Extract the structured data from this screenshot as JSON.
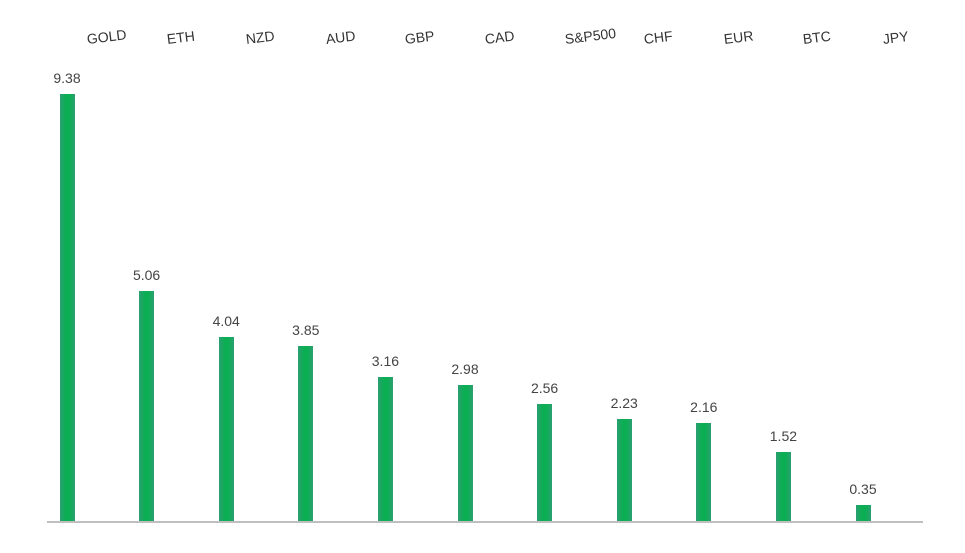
{
  "chart_data": {
    "type": "bar",
    "title": "",
    "categories": [
      "GOLD",
      "ETH",
      "NZD",
      "AUD",
      "GBP",
      "CAD",
      "S&P500",
      "CHF",
      "EUR",
      "BTC",
      "JPY"
    ],
    "values": [
      9.38,
      5.06,
      4.04,
      3.85,
      3.16,
      2.98,
      2.56,
      2.23,
      2.16,
      1.52,
      0.35
    ],
    "value_label_decimals": 2,
    "xlabel": "",
    "ylabel": "",
    "ylim": [
      0,
      10
    ],
    "grid": false,
    "legend": false,
    "layout_hints": {
      "category_labels_position": "top",
      "category_labels_rotated": true,
      "value_labels_position": "above-bars",
      "baseline_axis": "bottom"
    },
    "colors": {
      "bar_center": "#0bae52",
      "bar_edge": "#2b9f72",
      "value_label": "#444444",
      "category_label": "#333333",
      "axis_line": "#bfbfbf",
      "background": "#ffffff"
    }
  }
}
